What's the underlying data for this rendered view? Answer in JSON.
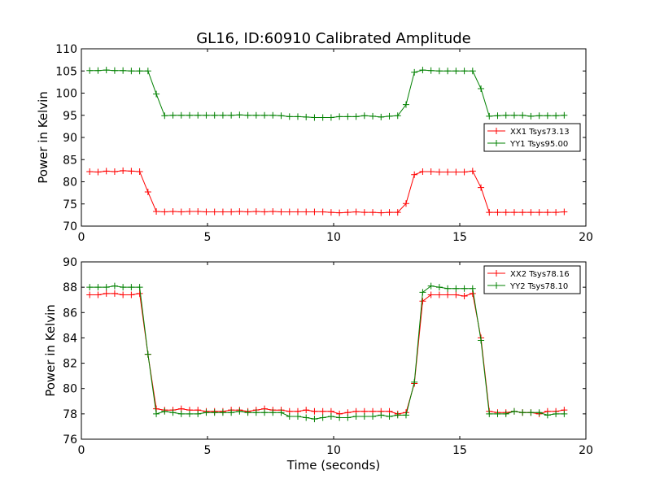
{
  "title": "GL16, ID:60910 Calibrated Amplitude",
  "colors": {
    "red": "#ff0000",
    "green": "#008000"
  },
  "chart_data": [
    {
      "type": "line",
      "ylabel": "Power in Kelvin",
      "xlabel": "",
      "xlim": [
        0,
        20
      ],
      "ylim": [
        70,
        110
      ],
      "xticks": [
        0,
        5,
        10,
        15,
        20
      ],
      "yticks": [
        70,
        75,
        80,
        85,
        90,
        95,
        100,
        105,
        110
      ],
      "legend_position": "center-right",
      "x": [
        0.33,
        0.66,
        0.99,
        1.32,
        1.65,
        1.98,
        2.31,
        2.64,
        2.97,
        3.3,
        3.63,
        3.96,
        4.29,
        4.62,
        4.95,
        5.28,
        5.61,
        5.94,
        6.27,
        6.6,
        6.93,
        7.26,
        7.59,
        7.92,
        8.25,
        8.58,
        8.91,
        9.24,
        9.57,
        9.9,
        10.23,
        10.56,
        10.89,
        11.22,
        11.55,
        11.88,
        12.21,
        12.54,
        12.87,
        13.2,
        13.53,
        13.86,
        14.19,
        14.52,
        14.85,
        15.18,
        15.51,
        15.84,
        16.17,
        16.5,
        16.83,
        17.16,
        17.49,
        17.82,
        18.15,
        18.48,
        18.81,
        19.14
      ],
      "series": [
        {
          "name": "XX1 Tsys73.13",
          "color": "#ff0000",
          "values": [
            82.3,
            82.2,
            82.4,
            82.3,
            82.5,
            82.4,
            82.3,
            77.7,
            73.3,
            73.2,
            73.3,
            73.2,
            73.3,
            73.3,
            73.2,
            73.2,
            73.2,
            73.2,
            73.3,
            73.2,
            73.3,
            73.2,
            73.3,
            73.2,
            73.2,
            73.2,
            73.2,
            73.2,
            73.2,
            73.1,
            73.0,
            73.1,
            73.2,
            73.1,
            73.1,
            73.0,
            73.1,
            73.1,
            75.1,
            81.6,
            82.3,
            82.3,
            82.2,
            82.2,
            82.2,
            82.2,
            82.4,
            78.7,
            73.1,
            73.1,
            73.1,
            73.1,
            73.1,
            73.1,
            73.1,
            73.1,
            73.1,
            73.2
          ]
        },
        {
          "name": "YY1 Tsys95.00",
          "color": "#008000",
          "values": [
            105.1,
            105.1,
            105.2,
            105.1,
            105.1,
            105.0,
            105.0,
            105.0,
            99.8,
            94.9,
            95.0,
            95.0,
            95.0,
            95.0,
            95.0,
            95.0,
            95.0,
            95.0,
            95.1,
            95.0,
            95.0,
            95.0,
            95.0,
            94.9,
            94.7,
            94.7,
            94.6,
            94.5,
            94.5,
            94.5,
            94.7,
            94.7,
            94.7,
            94.9,
            94.8,
            94.6,
            94.8,
            94.9,
            97.4,
            104.7,
            105.2,
            105.1,
            105.0,
            105.0,
            105.0,
            105.0,
            105.0,
            101.0,
            94.8,
            94.9,
            95.0,
            95.0,
            95.0,
            94.8,
            94.9,
            94.9,
            94.9,
            95.0
          ]
        }
      ]
    },
    {
      "type": "line",
      "ylabel": "Power in Kelvin",
      "xlabel": "Time (seconds)",
      "xlim": [
        0,
        20
      ],
      "ylim": [
        76,
        90
      ],
      "xticks": [
        0,
        5,
        10,
        15,
        20
      ],
      "yticks": [
        76,
        78,
        80,
        82,
        84,
        86,
        88,
        90
      ],
      "legend_position": "top-right",
      "x": [
        0.33,
        0.66,
        0.99,
        1.32,
        1.65,
        1.98,
        2.31,
        2.64,
        2.97,
        3.3,
        3.63,
        3.96,
        4.29,
        4.62,
        4.95,
        5.28,
        5.61,
        5.94,
        6.27,
        6.6,
        6.93,
        7.26,
        7.59,
        7.92,
        8.25,
        8.58,
        8.91,
        9.24,
        9.57,
        9.9,
        10.23,
        10.56,
        10.89,
        11.22,
        11.55,
        11.88,
        12.21,
        12.54,
        12.87,
        13.2,
        13.53,
        13.86,
        14.19,
        14.52,
        14.85,
        15.18,
        15.51,
        15.84,
        16.17,
        16.5,
        16.83,
        17.16,
        17.49,
        17.82,
        18.15,
        18.48,
        18.81,
        19.14
      ],
      "series": [
        {
          "name": "XX2 Tsys78.16",
          "color": "#ff0000",
          "values": [
            87.4,
            87.4,
            87.5,
            87.5,
            87.4,
            87.4,
            87.5,
            82.7,
            78.4,
            78.3,
            78.3,
            78.4,
            78.3,
            78.3,
            78.2,
            78.2,
            78.2,
            78.3,
            78.3,
            78.2,
            78.3,
            78.4,
            78.3,
            78.3,
            78.2,
            78.2,
            78.3,
            78.2,
            78.2,
            78.2,
            78.0,
            78.1,
            78.2,
            78.2,
            78.2,
            78.2,
            78.2,
            78.0,
            78.1,
            80.4,
            86.9,
            87.4,
            87.4,
            87.4,
            87.4,
            87.3,
            87.5,
            84.0,
            78.2,
            78.1,
            78.1,
            78.2,
            78.1,
            78.1,
            78.0,
            78.2,
            78.2,
            78.3
          ]
        },
        {
          "name": "YY2 Tsys78.10",
          "color": "#008000",
          "values": [
            88.0,
            88.0,
            88.0,
            88.1,
            88.0,
            88.0,
            88.0,
            82.7,
            78.0,
            78.2,
            78.1,
            78.0,
            78.0,
            78.0,
            78.1,
            78.1,
            78.1,
            78.1,
            78.2,
            78.1,
            78.1,
            78.1,
            78.1,
            78.1,
            77.8,
            77.8,
            77.7,
            77.6,
            77.7,
            77.8,
            77.7,
            77.7,
            77.8,
            77.8,
            77.8,
            77.9,
            77.8,
            77.9,
            77.9,
            80.5,
            87.6,
            88.1,
            88.0,
            87.9,
            87.9,
            87.9,
            87.9,
            83.8,
            78.0,
            78.0,
            78.0,
            78.2,
            78.1,
            78.1,
            78.1,
            77.9,
            78.0,
            78.0
          ]
        }
      ]
    }
  ]
}
